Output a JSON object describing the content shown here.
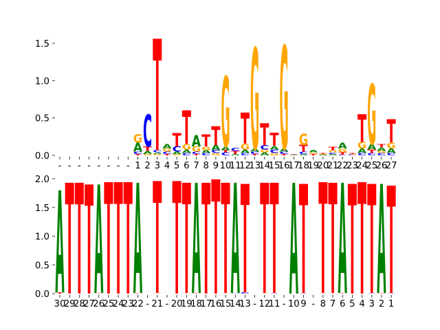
{
  "chart_data": [
    {
      "type": "sequence-logo",
      "panel": "top",
      "ylabel": "",
      "xlabel": "",
      "ylim": [
        0,
        1.6
      ],
      "yticks": [
        "0.0",
        "0.5",
        "1.0",
        "1.5"
      ],
      "ytick_values": [
        0,
        0.5,
        1.0,
        1.5
      ],
      "grid": false,
      "colors": {
        "A": "#008000",
        "C": "#0000ff",
        "G": "#ffa500",
        "T": "#ff0000"
      },
      "xtick_labels": [
        "-",
        "-",
        "-",
        "-",
        "-",
        "-",
        "-",
        "-",
        "1",
        "2",
        "3",
        "4",
        "5",
        "6",
        "7",
        "8",
        "9",
        "10",
        "11",
        "12",
        "13",
        "14",
        "15",
        "16",
        "17",
        "18",
        "19",
        "20",
        "21",
        "22",
        "23",
        "24",
        "25",
        "26",
        "27"
      ],
      "positions": [
        [],
        [],
        [],
        [],
        [],
        [],
        [],
        [],
        [
          [
            "T",
            0.02
          ],
          [
            "C",
            0.03
          ],
          [
            "A",
            0.12
          ],
          [
            "G",
            0.11
          ]
        ],
        [
          [
            "G",
            0.02
          ],
          [
            "A",
            0.04
          ],
          [
            "T",
            0.06
          ],
          [
            "C",
            0.43
          ]
        ],
        [
          [
            "G",
            0.02
          ],
          [
            "A",
            0.02
          ],
          [
            "C",
            0.03
          ],
          [
            "T",
            1.49
          ]
        ],
        [
          [
            "T",
            0.02
          ],
          [
            "C",
            0.03
          ],
          [
            "G",
            0.04
          ],
          [
            "A",
            0.06
          ]
        ],
        [
          [
            "G",
            0.02
          ],
          [
            "A",
            0.03
          ],
          [
            "C",
            0.07
          ],
          [
            "T",
            0.18
          ]
        ],
        [
          [
            "C",
            0.03
          ],
          [
            "A",
            0.05
          ],
          [
            "G",
            0.07
          ],
          [
            "T",
            0.45
          ]
        ],
        [
          [
            "T",
            0.02
          ],
          [
            "C",
            0.03
          ],
          [
            "G",
            0.07
          ],
          [
            "A",
            0.15
          ]
        ],
        [
          [
            "C",
            0.03
          ],
          [
            "A",
            0.04
          ],
          [
            "G",
            0.05
          ],
          [
            "T",
            0.16
          ]
        ],
        [
          [
            "G",
            0.03
          ],
          [
            "C",
            0.04
          ],
          [
            "A",
            0.07
          ],
          [
            "T",
            0.25
          ]
        ],
        [
          [
            "C",
            0.04
          ],
          [
            "T",
            0.03
          ],
          [
            "A",
            0.05
          ],
          [
            "G",
            0.94
          ]
        ],
        [
          [
            "A",
            0.02
          ],
          [
            "T",
            0.04
          ],
          [
            "C",
            0.04
          ]
        ],
        [
          [
            "C",
            0.03
          ],
          [
            "A",
            0.05
          ],
          [
            "G",
            0.08
          ],
          [
            "T",
            0.41
          ]
        ],
        [
          [
            "T",
            0.02
          ],
          [
            "C",
            0.03
          ],
          [
            "A",
            0.04
          ],
          [
            "G",
            1.35
          ]
        ],
        [
          [
            "A",
            0.04
          ],
          [
            "G",
            0.04
          ],
          [
            "C",
            0.06
          ],
          [
            "T",
            0.29
          ]
        ],
        [
          [
            "G",
            0.03
          ],
          [
            "C",
            0.05
          ],
          [
            "A",
            0.05
          ],
          [
            "T",
            0.17
          ]
        ],
        [
          [
            "T",
            0.02
          ],
          [
            "C",
            0.03
          ],
          [
            "A",
            0.04
          ],
          [
            "G",
            1.38
          ]
        ],
        [
          [
            "G",
            0.005
          ],
          [
            "A",
            0.005
          ],
          [
            "C",
            0.005
          ],
          [
            "T",
            0.005
          ]
        ],
        [
          [
            "A",
            0.02
          ],
          [
            "C",
            0.03
          ],
          [
            "T",
            0.09
          ],
          [
            "G",
            0.15
          ]
        ],
        [
          [
            "T",
            0.02
          ],
          [
            "G",
            0.02
          ],
          [
            "A",
            0.03
          ]
        ],
        [
          [
            "A",
            0.01
          ],
          [
            "G",
            0.01
          ],
          [
            "T",
            0.01
          ]
        ],
        [
          [
            "A",
            0.02
          ],
          [
            "C",
            0.02
          ],
          [
            "G",
            0.03
          ],
          [
            "T",
            0.05
          ]
        ],
        [
          [
            "C",
            0.01
          ],
          [
            "T",
            0.03
          ],
          [
            "G",
            0.05
          ],
          [
            "A",
            0.08
          ]
        ],
        [
          [
            "C",
            0.01
          ],
          [
            "G",
            0.01
          ],
          [
            "T",
            0.01
          ]
        ],
        [
          [
            "C",
            0.03
          ],
          [
            "A",
            0.06
          ],
          [
            "G",
            0.09
          ],
          [
            "T",
            0.37
          ]
        ],
        [
          [
            "C",
            0.03
          ],
          [
            "T",
            0.05
          ],
          [
            "A",
            0.07
          ],
          [
            "G",
            0.8
          ]
        ],
        [
          [
            "C",
            0.03
          ],
          [
            "G",
            0.03
          ],
          [
            "A",
            0.05
          ],
          [
            "T",
            0.04
          ]
        ],
        [
          [
            "C",
            0.03
          ],
          [
            "A",
            0.06
          ],
          [
            "G",
            0.08
          ],
          [
            "T",
            0.31
          ]
        ]
      ]
    },
    {
      "type": "sequence-logo",
      "panel": "bottom",
      "ylabel": "",
      "xlabel": "",
      "ylim": [
        0,
        2.0
      ],
      "yticks": [
        "0.0",
        "0.5",
        "1.0",
        "1.5",
        "2.0"
      ],
      "ytick_values": [
        0,
        0.5,
        1.0,
        1.5,
        2.0
      ],
      "grid": false,
      "colors": {
        "A": "#008000",
        "C": "#0000ff",
        "G": "#ffa500",
        "T": "#ff0000"
      },
      "xtick_labels": [
        "30",
        "29",
        "28",
        "27",
        "26",
        "25",
        "24",
        "23",
        "22",
        "-",
        "21",
        "-",
        "20",
        "19",
        "18",
        "17",
        "16",
        "15",
        "14",
        "13",
        "-",
        "12",
        "11",
        "-",
        "10",
        "9",
        "-",
        "8",
        "7",
        "6",
        "5",
        "4",
        "3",
        "2",
        "1"
      ],
      "positions": [
        [
          [
            "T",
            0.02
          ],
          [
            "A",
            1.78
          ]
        ],
        [
          [
            "T",
            1.93
          ]
        ],
        [
          [
            "T",
            1.93
          ]
        ],
        [
          [
            "T",
            1.9
          ]
        ],
        [
          [
            "T",
            0.01
          ],
          [
            "A",
            1.89
          ]
        ],
        [
          [
            "T",
            1.94
          ]
        ],
        [
          [
            "T",
            1.94
          ]
        ],
        [
          [
            "T",
            1.94
          ]
        ],
        [
          [
            "T",
            0.01
          ],
          [
            "A",
            1.92
          ]
        ],
        [],
        [
          [
            "G",
            0.01
          ],
          [
            "T",
            1.95
          ]
        ],
        [],
        [
          [
            "T",
            1.96
          ]
        ],
        [
          [
            "G",
            0.01
          ],
          [
            "T",
            1.92
          ]
        ],
        [
          [
            "T",
            0.01
          ],
          [
            "A",
            1.92
          ]
        ],
        [
          [
            "T",
            1.93
          ]
        ],
        [
          [
            "T",
            1.99
          ]
        ],
        [
          [
            "G",
            0.01
          ],
          [
            "T",
            1.92
          ]
        ],
        [
          [
            "C",
            0.01
          ],
          [
            "A",
            1.92
          ]
        ],
        [
          [
            "C",
            0.02
          ],
          [
            "T",
            1.89
          ]
        ],
        [],
        [
          [
            "G",
            0.01
          ],
          [
            "T",
            1.92
          ]
        ],
        [
          [
            "C",
            0.01
          ],
          [
            "T",
            1.92
          ]
        ],
        [],
        [
          [
            "A",
            1.93
          ]
        ],
        [
          [
            "C",
            0.01
          ],
          [
            "T",
            1.9
          ]
        ],
        [],
        [
          [
            "G",
            0.01
          ],
          [
            "T",
            1.93
          ]
        ],
        [
          [
            "G",
            0.01
          ],
          [
            "T",
            1.92
          ]
        ],
        [
          [
            "T",
            0.01
          ],
          [
            "A",
            1.92
          ]
        ],
        [
          [
            "T",
            1.91
          ]
        ],
        [
          [
            "T",
            1.94
          ]
        ],
        [
          [
            "C",
            0.01
          ],
          [
            "T",
            1.9
          ]
        ],
        [
          [
            "T",
            0.01
          ],
          [
            "A",
            1.9
          ]
        ],
        [
          [
            "C",
            0.01
          ],
          [
            "T",
            1.87
          ]
        ]
      ]
    }
  ]
}
